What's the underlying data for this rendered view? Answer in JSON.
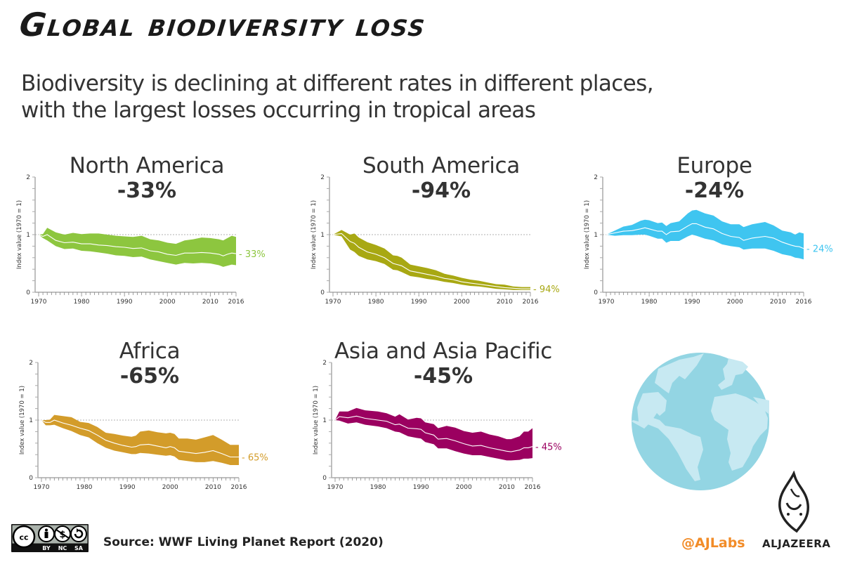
{
  "header": {
    "title": "Global biodiversity loss",
    "subtitle_line1": "Biodiversity is declining at different rates in different places,",
    "subtitle_line2": "with the largest losses occurring in tropical areas"
  },
  "footer": {
    "license_labels": [
      "BY",
      "NC",
      "SA"
    ],
    "license_icon": "creative-commons-by-nc-sa-icon",
    "source": "Source: WWF Living Planet Report (2020)",
    "handle": "@AJLabs",
    "brand": "ALJAZEERA",
    "handle_color": "#f28c28"
  },
  "globe": {
    "icon": "globe-icon",
    "ocean_color": "#93d5e3",
    "land_color": "#c7e9f2"
  },
  "chart_data": [
    {
      "type": "area",
      "region": "North America",
      "headline": "-33%",
      "end_label": "- 33%",
      "color": "#8dc63f",
      "ylabel": "Index value (1970 = 1)",
      "xlabel": "",
      "ylim": [
        0,
        2
      ],
      "xlim": [
        1970,
        2016
      ],
      "yticks": [
        "0",
        "1",
        "2"
      ],
      "xticks": [
        "1970",
        "1980",
        "1990",
        "2000",
        "2010",
        "2016"
      ],
      "reference_line": 1,
      "x": [
        1970,
        1971,
        1972,
        1974,
        1976,
        1978,
        1980,
        1982,
        1984,
        1986,
        1988,
        1990,
        1992,
        1994,
        1996,
        1998,
        2000,
        2002,
        2004,
        2006,
        2008,
        2010,
        2012,
        2013,
        2014,
        2015,
        2016
      ],
      "index": [
        1.0,
        0.97,
        1.0,
        0.9,
        0.86,
        0.87,
        0.84,
        0.84,
        0.82,
        0.81,
        0.79,
        0.78,
        0.76,
        0.77,
        0.72,
        0.7,
        0.66,
        0.64,
        0.68,
        0.68,
        0.69,
        0.68,
        0.66,
        0.63,
        0.66,
        0.68,
        0.67
      ],
      "upper": [
        1.0,
        1.01,
        1.12,
        1.04,
        1.0,
        1.03,
        1.01,
        1.02,
        1.02,
        1.0,
        0.98,
        0.97,
        0.96,
        0.98,
        0.92,
        0.9,
        0.86,
        0.84,
        0.9,
        0.92,
        0.95,
        0.94,
        0.92,
        0.9,
        0.94,
        0.98,
        0.96
      ],
      "lower": [
        1.0,
        0.94,
        0.9,
        0.8,
        0.75,
        0.76,
        0.72,
        0.71,
        0.69,
        0.67,
        0.64,
        0.63,
        0.61,
        0.62,
        0.57,
        0.54,
        0.51,
        0.48,
        0.51,
        0.5,
        0.51,
        0.5,
        0.47,
        0.44,
        0.46,
        0.48,
        0.47
      ]
    },
    {
      "type": "area",
      "region": "South America",
      "headline": "-94%",
      "end_label": "- 94%",
      "color": "#a8a813",
      "ylabel": "Index value (1970 = 1)",
      "xlabel": "",
      "ylim": [
        0,
        2
      ],
      "xlim": [
        1970,
        2016
      ],
      "yticks": [
        "0",
        "1",
        "2"
      ],
      "xticks": [
        "1970",
        "1980",
        "1990",
        "2000",
        "2010",
        "2016"
      ],
      "reference_line": 1,
      "x": [
        1970,
        1972,
        1974,
        1975,
        1976,
        1978,
        1980,
        1982,
        1984,
        1985,
        1986,
        1988,
        1990,
        1992,
        1994,
        1996,
        1998,
        2000,
        2002,
        2004,
        2006,
        2008,
        2010,
        2012,
        2014,
        2016
      ],
      "index": [
        1.0,
        1.02,
        0.88,
        0.85,
        0.78,
        0.7,
        0.66,
        0.6,
        0.5,
        0.48,
        0.46,
        0.37,
        0.34,
        0.31,
        0.28,
        0.24,
        0.22,
        0.18,
        0.16,
        0.14,
        0.12,
        0.1,
        0.08,
        0.07,
        0.06,
        0.06
      ],
      "upper": [
        1.0,
        1.08,
        1.0,
        1.02,
        0.95,
        0.87,
        0.82,
        0.76,
        0.64,
        0.63,
        0.6,
        0.48,
        0.45,
        0.42,
        0.38,
        0.32,
        0.29,
        0.25,
        0.22,
        0.2,
        0.17,
        0.14,
        0.13,
        0.1,
        0.09,
        0.09
      ],
      "lower": [
        1.0,
        0.97,
        0.74,
        0.7,
        0.63,
        0.57,
        0.54,
        0.49,
        0.39,
        0.38,
        0.35,
        0.28,
        0.26,
        0.23,
        0.21,
        0.18,
        0.16,
        0.13,
        0.11,
        0.1,
        0.08,
        0.06,
        0.05,
        0.04,
        0.04,
        0.04
      ]
    },
    {
      "type": "area",
      "region": "Europe",
      "headline": "-24%",
      "end_label": "- 24%",
      "color": "#3fc5f0",
      "ylabel": "Index value (1970 = 1)",
      "xlabel": "",
      "ylim": [
        0,
        2
      ],
      "xlim": [
        1970,
        2016
      ],
      "yticks": [
        "0",
        "1",
        "2"
      ],
      "xticks": [
        "1970",
        "1980",
        "1990",
        "2000",
        "2010",
        "2016"
      ],
      "reference_line": 1,
      "x": [
        1970,
        1972,
        1974,
        1976,
        1978,
        1979,
        1980,
        1982,
        1983,
        1984,
        1985,
        1987,
        1989,
        1990,
        1991,
        1993,
        1995,
        1997,
        1999,
        2001,
        2002,
        2004,
        2007,
        2009,
        2011,
        2013,
        2014,
        2015,
        2016
      ],
      "index": [
        1.0,
        1.03,
        1.06,
        1.07,
        1.1,
        1.12,
        1.1,
        1.06,
        1.06,
        1.0,
        1.05,
        1.06,
        1.15,
        1.19,
        1.19,
        1.13,
        1.1,
        1.02,
        0.97,
        0.95,
        0.9,
        0.94,
        0.97,
        0.94,
        0.87,
        0.82,
        0.8,
        0.79,
        0.76
      ],
      "upper": [
        1.0,
        1.07,
        1.14,
        1.17,
        1.24,
        1.26,
        1.25,
        1.2,
        1.21,
        1.15,
        1.2,
        1.23,
        1.37,
        1.42,
        1.43,
        1.37,
        1.33,
        1.23,
        1.18,
        1.18,
        1.13,
        1.18,
        1.22,
        1.16,
        1.07,
        1.04,
        1.0,
        1.04,
        1.02
      ],
      "lower": [
        1.0,
        0.98,
        0.99,
        0.99,
        1.0,
        1.0,
        0.98,
        0.93,
        0.93,
        0.86,
        0.89,
        0.89,
        0.97,
        1.0,
        0.98,
        0.93,
        0.9,
        0.83,
        0.8,
        0.78,
        0.74,
        0.76,
        0.76,
        0.72,
        0.66,
        0.63,
        0.6,
        0.59,
        0.57
      ]
    },
    {
      "type": "area",
      "region": "Africa",
      "headline": "-65%",
      "end_label": "- 65%",
      "color": "#d39c2a",
      "ylabel": "Index value (1970 = 1)",
      "xlabel": "",
      "ylim": [
        0,
        2
      ],
      "xlim": [
        1970,
        2016
      ],
      "yticks": [
        "0",
        "1",
        "2"
      ],
      "xticks": [
        "1970",
        "1980",
        "1990",
        "2000",
        "2010",
        "2016"
      ],
      "reference_line": 1,
      "x": [
        1970,
        1971,
        1972,
        1973,
        1975,
        1977,
        1979,
        1981,
        1983,
        1985,
        1987,
        1989,
        1991,
        1992,
        1993,
        1995,
        1997,
        1999,
        2000,
        2001,
        2002,
        2004,
        2006,
        2008,
        2010,
        2012,
        2014,
        2016
      ],
      "index": [
        1.0,
        0.96,
        0.96,
        1.0,
        0.95,
        0.91,
        0.86,
        0.82,
        0.74,
        0.65,
        0.6,
        0.56,
        0.53,
        0.54,
        0.57,
        0.58,
        0.55,
        0.52,
        0.54,
        0.52,
        0.46,
        0.44,
        0.42,
        0.44,
        0.47,
        0.42,
        0.36,
        0.36
      ],
      "upper": [
        1.0,
        1.0,
        1.01,
        1.09,
        1.07,
        1.05,
        0.97,
        0.95,
        0.88,
        0.78,
        0.76,
        0.73,
        0.71,
        0.73,
        0.8,
        0.82,
        0.79,
        0.77,
        0.78,
        0.76,
        0.68,
        0.68,
        0.66,
        0.7,
        0.74,
        0.66,
        0.57,
        0.57
      ],
      "lower": [
        1.0,
        0.91,
        0.91,
        0.92,
        0.86,
        0.81,
        0.74,
        0.7,
        0.6,
        0.52,
        0.47,
        0.44,
        0.41,
        0.41,
        0.43,
        0.42,
        0.4,
        0.38,
        0.39,
        0.37,
        0.31,
        0.29,
        0.27,
        0.27,
        0.29,
        0.26,
        0.22,
        0.22
      ]
    },
    {
      "type": "area",
      "region": "Asia and Asia Pacific",
      "headline": "-45%",
      "end_label": "- 45%",
      "color": "#9b0060",
      "ylabel": "Index value (1970 = 1)",
      "xlabel": "",
      "ylim": [
        0,
        2
      ],
      "xlim": [
        1970,
        2016
      ],
      "yticks": [
        "0",
        "1",
        "2"
      ],
      "xticks": [
        "1970",
        "1980",
        "1990",
        "2000",
        "2010",
        "2016"
      ],
      "reference_line": 1,
      "x": [
        1970,
        1971,
        1973,
        1975,
        1977,
        1980,
        1982,
        1984,
        1985,
        1987,
        1989,
        1990,
        1991,
        1993,
        1994,
        1996,
        1998,
        2000,
        2002,
        2004,
        2006,
        2008,
        2010,
        2011,
        2013,
        2014,
        2015,
        2016
      ],
      "index": [
        1.0,
        1.06,
        1.04,
        1.07,
        1.03,
        1.0,
        0.98,
        0.92,
        0.93,
        0.86,
        0.85,
        0.84,
        0.78,
        0.74,
        0.67,
        0.68,
        0.64,
        0.59,
        0.55,
        0.56,
        0.52,
        0.49,
        0.46,
        0.45,
        0.48,
        0.52,
        0.52,
        0.54
      ],
      "upper": [
        1.0,
        1.15,
        1.15,
        1.21,
        1.17,
        1.15,
        1.12,
        1.06,
        1.1,
        1.01,
        1.04,
        1.03,
        0.96,
        0.93,
        0.86,
        0.9,
        0.87,
        0.81,
        0.78,
        0.8,
        0.75,
        0.72,
        0.67,
        0.67,
        0.72,
        0.8,
        0.8,
        0.86
      ],
      "lower": [
        1.0,
        0.99,
        0.94,
        0.96,
        0.92,
        0.89,
        0.86,
        0.8,
        0.79,
        0.72,
        0.69,
        0.68,
        0.62,
        0.58,
        0.51,
        0.51,
        0.46,
        0.42,
        0.39,
        0.39,
        0.36,
        0.33,
        0.3,
        0.3,
        0.31,
        0.33,
        0.33,
        0.34
      ]
    }
  ]
}
